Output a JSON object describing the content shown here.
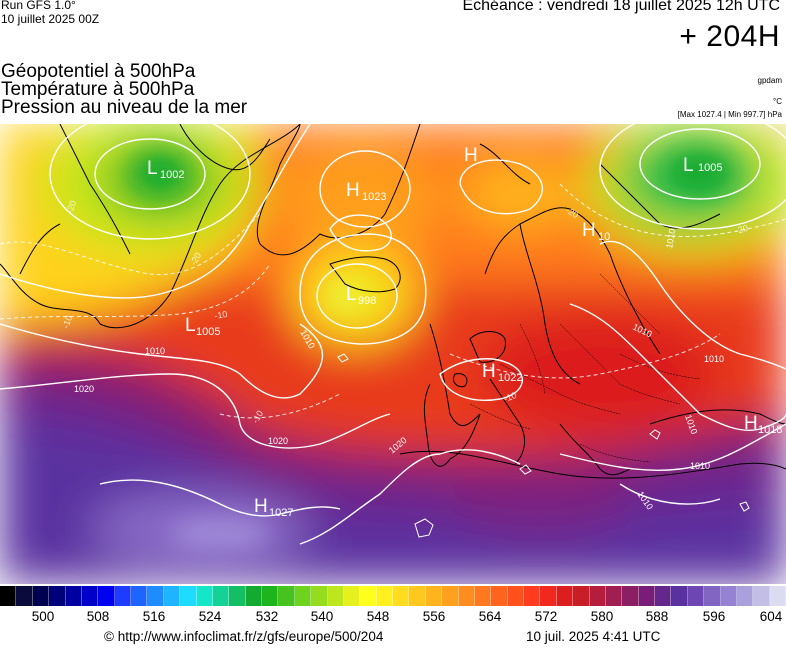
{
  "header": {
    "run_line1": "Run GFS 1.0°",
    "run_line2": "10 juillet 2025 00Z",
    "valid": "Echéance : vendredi 18 juillet 2025 12h UTC",
    "lead": "+ 204H"
  },
  "titles": [
    "Géopotentiel à 500hPa",
    "Température à 500hPa",
    "Pression au niveau de la mer"
  ],
  "units": {
    "geopotential": "gpdam",
    "temperature": "°C",
    "maxmin": "[Max 1027.4 | Min 997.7] hPa"
  },
  "pressure_centers": [
    {
      "type": "L",
      "value": "1002"
    },
    {
      "type": "H",
      "value": "1023"
    },
    {
      "type": "L",
      "value": "998"
    },
    {
      "type": "L",
      "value": "1005"
    },
    {
      "type": "H",
      "value": "1022"
    },
    {
      "type": "H",
      "value": "1027"
    },
    {
      "type": "H",
      "value": "1018"
    },
    {
      "type": "L",
      "value": "1005"
    },
    {
      "type": "H",
      "value": ""
    },
    {
      "type": "H",
      "value": "10"
    }
  ],
  "isobar_labels": [
    "1010",
    "1020",
    "1010",
    "1020",
    "1010",
    "1010",
    "1010",
    "1010",
    "1010",
    "1020",
    "1010"
  ],
  "temp_labels": [
    "-20",
    "-20",
    "-20",
    "-20",
    "-10",
    "-10",
    "-10",
    "-10"
  ],
  "colorbar": {
    "colors": [
      "#000000",
      "#0a0a3c",
      "#000050",
      "#000078",
      "#0000a0",
      "#0000c8",
      "#0000f0",
      "#1e3cff",
      "#1e64ff",
      "#1e8cff",
      "#1eb4ff",
      "#1edcff",
      "#14e6c8",
      "#14d296",
      "#14be64",
      "#14aa32",
      "#1eb41e",
      "#46c31e",
      "#6ed21e",
      "#96dc1e",
      "#bee61e",
      "#e6f01e",
      "#ffff1e",
      "#fff01e",
      "#ffdc1e",
      "#ffc81e",
      "#ffb41e",
      "#ffa01e",
      "#ff8c1e",
      "#ff781e",
      "#ff641e",
      "#ff501e",
      "#ff3c1e",
      "#f0281e",
      "#dc1e1e",
      "#c81e28",
      "#b41e3c",
      "#a01e50",
      "#8c1e64",
      "#781e78",
      "#64288c",
      "#5a32a0",
      "#6e46b4",
      "#8264c3",
      "#9682d2",
      "#aaa0dc",
      "#c3bee6",
      "#dcdcf0"
    ],
    "ticks": [
      "500",
      "508",
      "516",
      "524",
      "532",
      "540",
      "548",
      "556",
      "564",
      "572",
      "580",
      "588",
      "596",
      "604"
    ]
  },
  "footer": {
    "credit": "© http://www.infoclimat.fr/z/gfs/europe/500/204",
    "stamp": "10 juil. 2025  4:41 UTC"
  }
}
